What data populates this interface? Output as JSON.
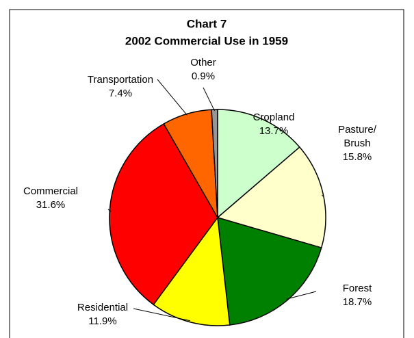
{
  "chart_data": {
    "type": "pie",
    "title": "Chart 7",
    "subtitle": "2002 Commercial Use in 1959",
    "categories": [
      "Cropland",
      "Pasture/\nBrush",
      "Forest",
      "Residential",
      "Commercial",
      "Transportation",
      "Other"
    ],
    "values": [
      13.7,
      15.8,
      18.7,
      11.9,
      31.6,
      7.4,
      0.9
    ],
    "value_labels": [
      "13.7%",
      "15.8%",
      "18.7%",
      "11.9%",
      "31.6%",
      "7.4%",
      "0.9%"
    ],
    "colors": [
      "#ccffcc",
      "#ffffcc",
      "#008000",
      "#ffff00",
      "#ff0000",
      "#ff6600",
      "#969696"
    ]
  }
}
